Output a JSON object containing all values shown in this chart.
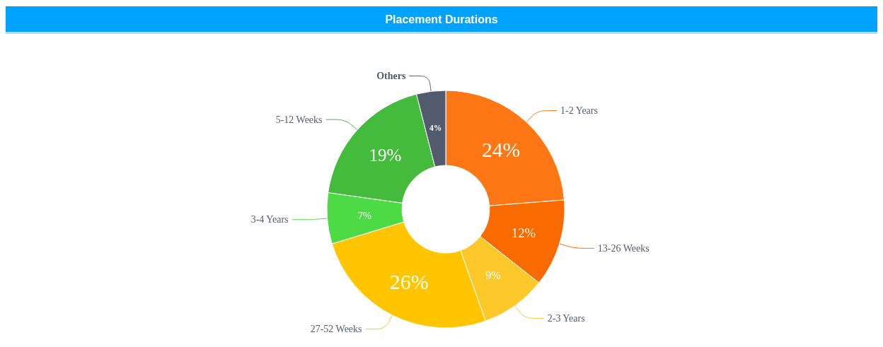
{
  "chart_data": {
    "type": "donut",
    "title": "Placement Durations",
    "categories": [
      "1-2 Years",
      "13-26 Weeks",
      "2-3 Years",
      "27-52 Weeks",
      "3-4 Years",
      "5-12 Weeks",
      "Others"
    ],
    "values": [
      24,
      12,
      9,
      26,
      7,
      19,
      4
    ],
    "colors": [
      "#ff7614",
      "#f96a00",
      "#fdc82a",
      "#ffc600",
      "#4cdb44",
      "#44bb3c",
      "#525a6e"
    ],
    "value_labels": [
      "24%",
      "12%",
      "9%",
      "26%",
      "7%",
      "19%",
      "4%"
    ],
    "legend": false
  }
}
